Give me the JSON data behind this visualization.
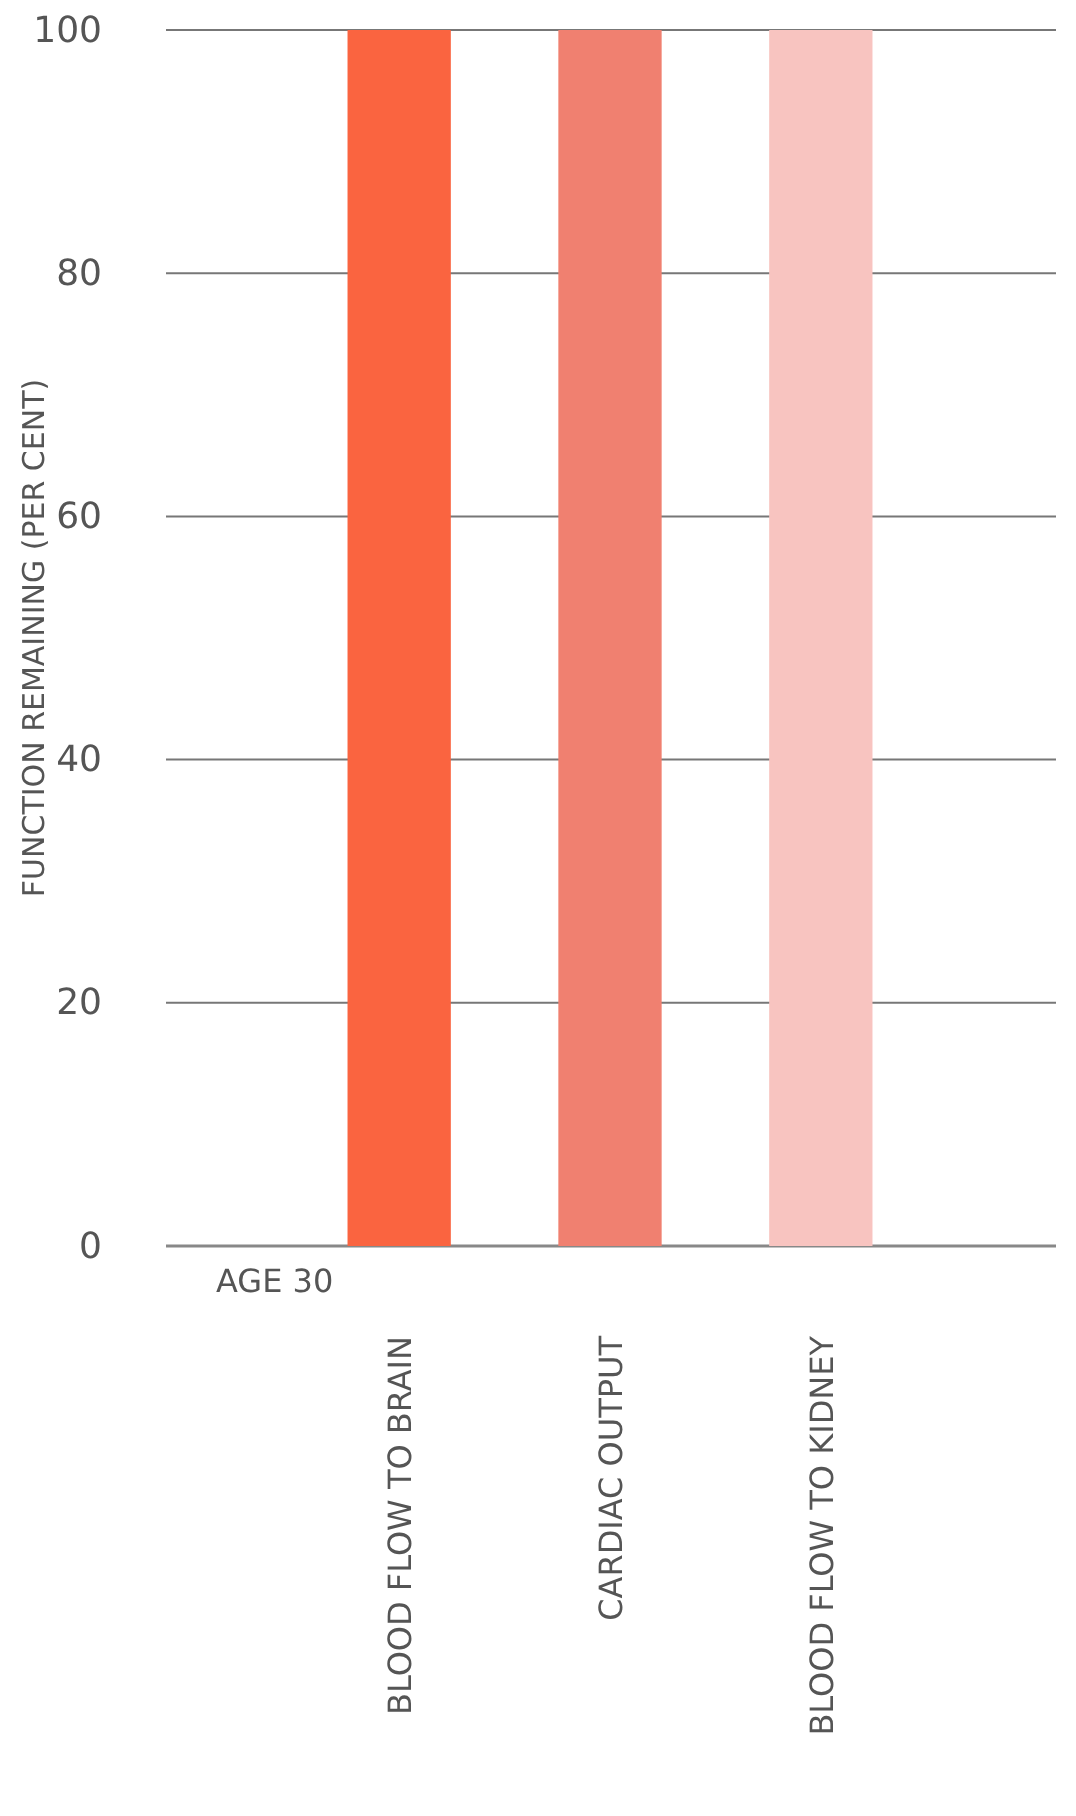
{
  "chart_data": {
    "type": "bar",
    "ylabel": "FUNCTION REMAINING (PER CENT)",
    "categories": [
      "BLOOD FLOW TO BRAIN",
      "CARDIAC OUTPUT",
      "BLOOD FLOW TO KIDNEY"
    ],
    "values": [
      100,
      100,
      100
    ],
    "colors": [
      "#fa6440",
      "#f08070",
      "#f8c4c0"
    ],
    "ylim": [
      0,
      100
    ],
    "yticks": [
      0,
      20,
      40,
      60,
      80,
      100
    ],
    "grid": "y",
    "annotations": [
      "AGE 30"
    ]
  }
}
